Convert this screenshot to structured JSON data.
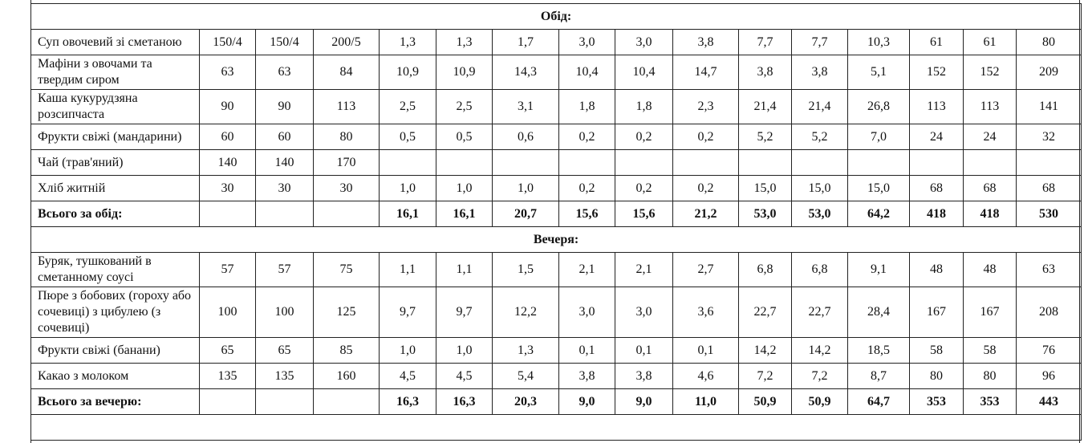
{
  "table": {
    "rows": [
      {
        "section": "Обід:"
      },
      {
        "cells": [
          "Суп овочевий зі сметаною",
          "150/4",
          "150/4",
          "200/5",
          "1,3",
          "1,3",
          "1,7",
          "3,0",
          "3,0",
          "3,8",
          "7,7",
          "7,7",
          "10,3",
          "61",
          "61",
          "80"
        ]
      },
      {
        "cells": [
          "Мафіни з овочами та твердим сиром",
          "63",
          "63",
          "84",
          "10,9",
          "10,9",
          "14,3",
          "10,4",
          "10,4",
          "14,7",
          "3,8",
          "3,8",
          "5,1",
          "152",
          "152",
          "209"
        ]
      },
      {
        "cells": [
          "Каша кукурудзяна розсипчаста",
          "90",
          "90",
          "113",
          "2,5",
          "2,5",
          "3,1",
          "1,8",
          "1,8",
          "2,3",
          "21,4",
          "21,4",
          "26,8",
          "113",
          "113",
          "141"
        ]
      },
      {
        "cells": [
          "Фрукти свіжі (мандарини)",
          "60",
          "60",
          "80",
          "0,5",
          "0,5",
          "0,6",
          "0,2",
          "0,2",
          "0,2",
          "5,2",
          "5,2",
          "7,0",
          "24",
          "24",
          "32"
        ]
      },
      {
        "cells": [
          "Чай (трав'яний)",
          "140",
          "140",
          "170",
          null,
          null,
          null,
          null,
          null,
          null,
          null,
          null,
          null,
          null,
          null,
          null
        ]
      },
      {
        "cells": [
          "Хліб житній",
          "30",
          "30",
          "30",
          "1,0",
          "1,0",
          "1,0",
          "0,2",
          "0,2",
          "0,2",
          "15,0",
          "15,0",
          "15,0",
          "68",
          "68",
          "68"
        ]
      },
      {
        "bold": true,
        "cells": [
          "Всього за обід:",
          null,
          null,
          null,
          "16,1",
          "16,1",
          "20,7",
          "15,6",
          "15,6",
          "21,2",
          "53,0",
          "53,0",
          "64,2",
          "418",
          "418",
          "530"
        ]
      },
      {
        "section": "Вечеря:"
      },
      {
        "cells": [
          "Буряк, тушкований в сметанному соусі",
          "57",
          "57",
          "75",
          "1,1",
          "1,1",
          "1,5",
          "2,1",
          "2,1",
          "2,7",
          "6,8",
          "6,8",
          "9,1",
          "48",
          "48",
          "63"
        ]
      },
      {
        "cells": [
          "Пюре з бобових (гороху або сочевиці) з цибулею (з сочевиці)",
          "100",
          "100",
          "125",
          "9,7",
          "9,7",
          "12,2",
          "3,0",
          "3,0",
          "3,6",
          "22,7",
          "22,7",
          "28,4",
          "167",
          "167",
          "208"
        ]
      },
      {
        "cells": [
          "Фрукти свіжі (банани)",
          "65",
          "65",
          "85",
          "1,0",
          "1,0",
          "1,3",
          "0,1",
          "0,1",
          "0,1",
          "14,2",
          "14,2",
          "18,5",
          "58",
          "58",
          "76"
        ]
      },
      {
        "cells": [
          "Какао з молоком",
          "135",
          "135",
          "160",
          "4,5",
          "4,5",
          "5,4",
          "3,8",
          "3,8",
          "4,6",
          "7,2",
          "7,2",
          "8,7",
          "80",
          "80",
          "96"
        ]
      },
      {
        "bold": true,
        "cells": [
          "Всього за вечерю:",
          null,
          null,
          null,
          "16,3",
          "16,3",
          "20,3",
          "9,0",
          "9,0",
          "11,0",
          "50,9",
          "50,9",
          "64,7",
          "353",
          "353",
          "443"
        ]
      }
    ]
  }
}
